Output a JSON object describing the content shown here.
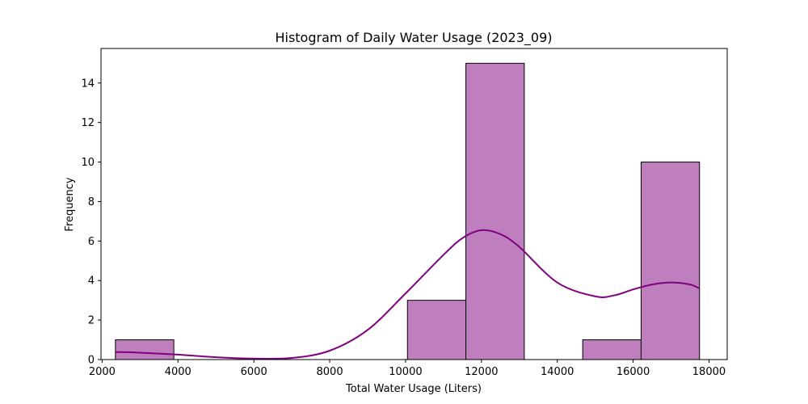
{
  "chart_data": {
    "type": "bar",
    "title": "Histogram of Daily Water Usage (2023_09)",
    "xlabel": "Total Water Usage (Liters)",
    "ylabel": "Frequency",
    "xlim": [
      1970,
      18480
    ],
    "ylim": [
      0,
      15.75
    ],
    "x_ticks": [
      2000,
      4000,
      6000,
      8000,
      10000,
      12000,
      14000,
      16000,
      18000
    ],
    "y_ticks": [
      0,
      2,
      4,
      6,
      8,
      10,
      12,
      14
    ],
    "bins": [
      {
        "x0": 2350,
        "x1": 3890,
        "count": 1
      },
      {
        "x0": 3890,
        "x1": 5430,
        "count": 0
      },
      {
        "x0": 5430,
        "x1": 6970,
        "count": 0
      },
      {
        "x0": 6970,
        "x1": 8510,
        "count": 0
      },
      {
        "x0": 8510,
        "x1": 10050,
        "count": 0
      },
      {
        "x0": 10050,
        "x1": 11590,
        "count": 3
      },
      {
        "x0": 11590,
        "x1": 13130,
        "count": 15
      },
      {
        "x0": 13130,
        "x1": 14670,
        "count": 0
      },
      {
        "x0": 14670,
        "x1": 16210,
        "count": 1
      },
      {
        "x0": 16210,
        "x1": 17750,
        "count": 10
      }
    ],
    "kde": {
      "x": [
        2350,
        3000,
        4000,
        5000,
        6000,
        7000,
        8000,
        9000,
        10000,
        11000,
        11500,
        12000,
        12500,
        13000,
        14000,
        15000,
        15500,
        16000,
        16500,
        17000,
        17500,
        17750
      ],
      "y": [
        0.38,
        0.35,
        0.25,
        0.12,
        0.05,
        0.08,
        0.45,
        1.5,
        3.35,
        5.3,
        6.15,
        6.55,
        6.35,
        5.7,
        3.9,
        3.2,
        3.25,
        3.55,
        3.8,
        3.9,
        3.8,
        3.6
      ]
    },
    "colors": {
      "bar_fill": "#bf7fbf",
      "bar_edge": "#000000",
      "kde_line": "#800080"
    },
    "grid": false,
    "legend": "none"
  }
}
